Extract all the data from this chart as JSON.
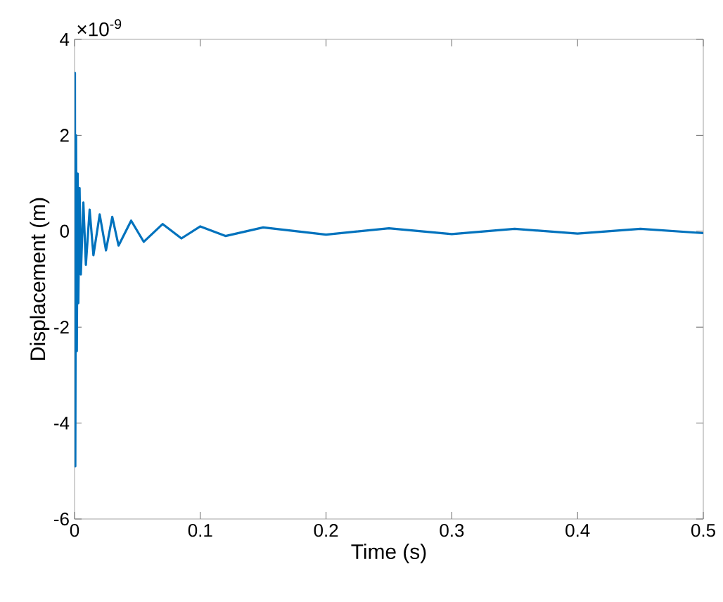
{
  "chart_data": {
    "type": "line",
    "xlabel": "Time (s)",
    "ylabel": "Displacement (m)",
    "annotations": [
      "×10$^{-9}$"
    ],
    "x": [
      0,
      0.0003,
      0.0006,
      0.0012,
      0.0018,
      0.0025,
      0.003,
      0.004,
      0.005,
      0.007,
      0.009,
      0.012,
      0.015,
      0.02,
      0.025,
      0.03,
      0.035,
      0.045,
      0.055,
      0.07,
      0.085,
      0.1,
      0.12,
      0.15,
      0.2,
      0.25,
      0.3,
      0.35,
      0.4,
      0.45,
      0.5
    ],
    "series": [
      {
        "color": "#0072bd",
        "values": [
          0,
          3.3,
          -4.9,
          2.0,
          -2.5,
          1.2,
          -1.5,
          0.9,
          -0.9,
          0.6,
          -0.7,
          0.45,
          -0.5,
          0.35,
          -0.4,
          0.3,
          -0.3,
          0.22,
          -0.22,
          0.15,
          -0.15,
          0.1,
          -0.1,
          0.08,
          -0.07,
          0.06,
          -0.06,
          0.05,
          -0.05,
          0.05,
          -0.04
        ]
      }
    ],
    "xlim": [
      0,
      0.5
    ],
    "ylim": [
      -6,
      4
    ],
    "xticks": [
      {
        "value": 0,
        "label": "0"
      },
      {
        "value": 0.1,
        "label": "0.1"
      },
      {
        "value": 0.2,
        "label": "0.2"
      },
      {
        "value": 0.3,
        "label": "0.3"
      },
      {
        "value": 0.4,
        "label": "0.4"
      },
      {
        "value": 0.5,
        "label": "0.5"
      }
    ],
    "yticks": [
      -6,
      -4,
      -2,
      0,
      2,
      4
    ],
    "grid": false,
    "marker": "none",
    "line_style": "solid"
  }
}
